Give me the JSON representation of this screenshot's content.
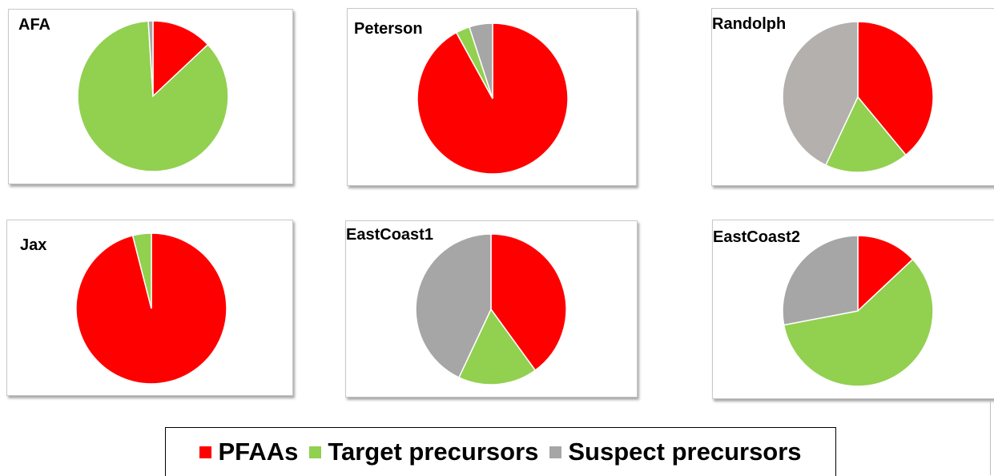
{
  "colors": {
    "pfaas": "#ff0000",
    "target": "#92d050",
    "suspect": "#a6a6a6",
    "suspect_alt": "#b4b0ad"
  },
  "chart_data": [
    {
      "type": "pie",
      "title": "AFA",
      "series": [
        {
          "values": [
            13,
            86,
            1
          ]
        }
      ],
      "categories": [
        "PFAAs",
        "Target precursors",
        "Suspect precursors"
      ]
    },
    {
      "type": "pie",
      "title": "Peterson",
      "series": [
        {
          "values": [
            92,
            3,
            5
          ]
        }
      ],
      "categories": [
        "PFAAs",
        "Target precursors",
        "Suspect precursors"
      ]
    },
    {
      "type": "pie",
      "title": "Randolph",
      "series": [
        {
          "values": [
            39,
            18,
            43
          ]
        }
      ],
      "categories": [
        "PFAAs",
        "Target precursors",
        "Suspect precursors"
      ]
    },
    {
      "type": "pie",
      "title": "Jax",
      "series": [
        {
          "values": [
            96,
            4,
            0
          ]
        }
      ],
      "categories": [
        "PFAAs",
        "Target precursors",
        "Suspect precursors"
      ]
    },
    {
      "type": "pie",
      "title": "EastCoast1",
      "series": [
        {
          "values": [
            40,
            17,
            43
          ]
        }
      ],
      "categories": [
        "PFAAs",
        "Target precursors",
        "Suspect precursors"
      ]
    },
    {
      "type": "pie",
      "title": "EastCoast2",
      "series": [
        {
          "values": [
            13,
            59,
            28
          ]
        }
      ],
      "categories": [
        "PFAAs",
        "Target precursors",
        "Suspect precursors"
      ]
    }
  ],
  "legend": {
    "placement": "bottom",
    "items": [
      {
        "label": "PFAAs",
        "color": "#ff0000"
      },
      {
        "label": "Target precursors",
        "color": "#92d050"
      },
      {
        "label": "Suspect precursors",
        "color": "#a6a6a6"
      }
    ]
  }
}
